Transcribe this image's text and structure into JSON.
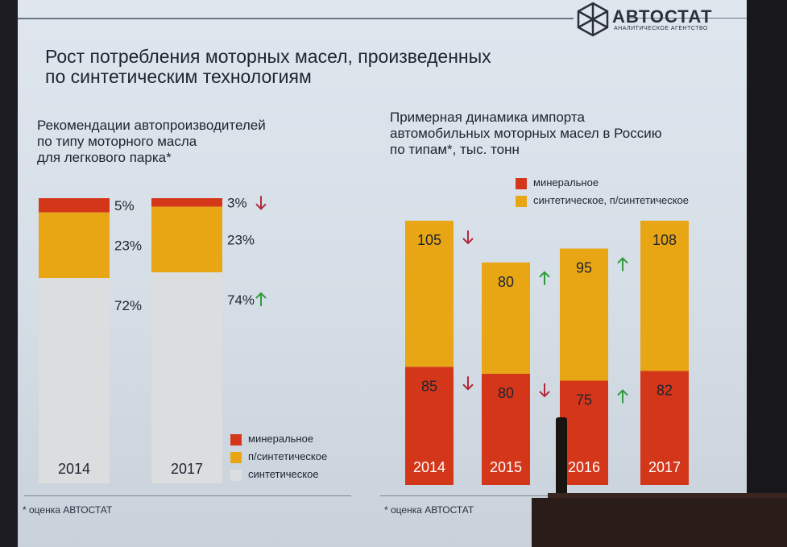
{
  "colors": {
    "mineral": "#d4361a",
    "semi": "#e8a615",
    "synthetic": "#dcdddf",
    "arrow_up": "#2e9a3c",
    "arrow_down": "#b0283a",
    "text": "#1e2430"
  },
  "header": {
    "logo_name": "АВТОСТАТ",
    "logo_sub": "аналитическое агентство",
    "title_line1": "Рост потребления моторных масел, произведенных",
    "title_line2": "по синтетическим технологиям"
  },
  "left": {
    "title_line1": "Рекомендации автопроизводителей",
    "title_line2": "по типу моторного масла",
    "title_line3": "для легкового парка*",
    "footnote": "* оценка АВТОСТАТ",
    "legend": [
      {
        "label": "минеральное",
        "color": "#d4361a"
      },
      {
        "label": "п/синтетическое",
        "color": "#e8a615"
      },
      {
        "label": "синтетическое",
        "color": "#dcdddf"
      }
    ]
  },
  "right": {
    "title_line1": "Примерная динамика импорта",
    "title_line2": "автомобильных моторных масел в Россию",
    "title_line3": "по типам*, тыс. тонн",
    "footnote": "* оценка АВТОСТАТ",
    "legend": [
      {
        "label": "минеральное",
        "color": "#d4361a"
      },
      {
        "label": "синтетическое, п/синтетическое",
        "color": "#e8a615"
      }
    ]
  },
  "chart_data": [
    {
      "type": "bar",
      "stacked": true,
      "percent": true,
      "categories": [
        "2014",
        "2017"
      ],
      "series": [
        {
          "name": "минеральное",
          "values": [
            5,
            3
          ],
          "labels": [
            "5%",
            "3%"
          ],
          "trend": [
            null,
            "down"
          ]
        },
        {
          "name": "п/синтетическое",
          "values": [
            23,
            23
          ],
          "labels": [
            "23%",
            "23%"
          ],
          "trend": [
            null,
            null
          ]
        },
        {
          "name": "синтетическое",
          "values": [
            72,
            74
          ],
          "labels": [
            "72%",
            "74%"
          ],
          "trend": [
            null,
            "up"
          ]
        }
      ]
    },
    {
      "type": "bar",
      "stacked": true,
      "categories": [
        "2014",
        "2015",
        "2016",
        "2017"
      ],
      "series": [
        {
          "name": "минеральное",
          "values": [
            85,
            80,
            75,
            82
          ],
          "labels": [
            "85",
            "80",
            "75",
            "82"
          ],
          "trend": [
            "down",
            "down",
            "up",
            null
          ]
        },
        {
          "name": "синтетическое, п/синтетическое",
          "values": [
            105,
            80,
            95,
            108
          ],
          "labels": [
            "105",
            "80",
            "95",
            "108"
          ],
          "trend": [
            "down",
            "up",
            "up",
            null
          ]
        }
      ]
    }
  ]
}
